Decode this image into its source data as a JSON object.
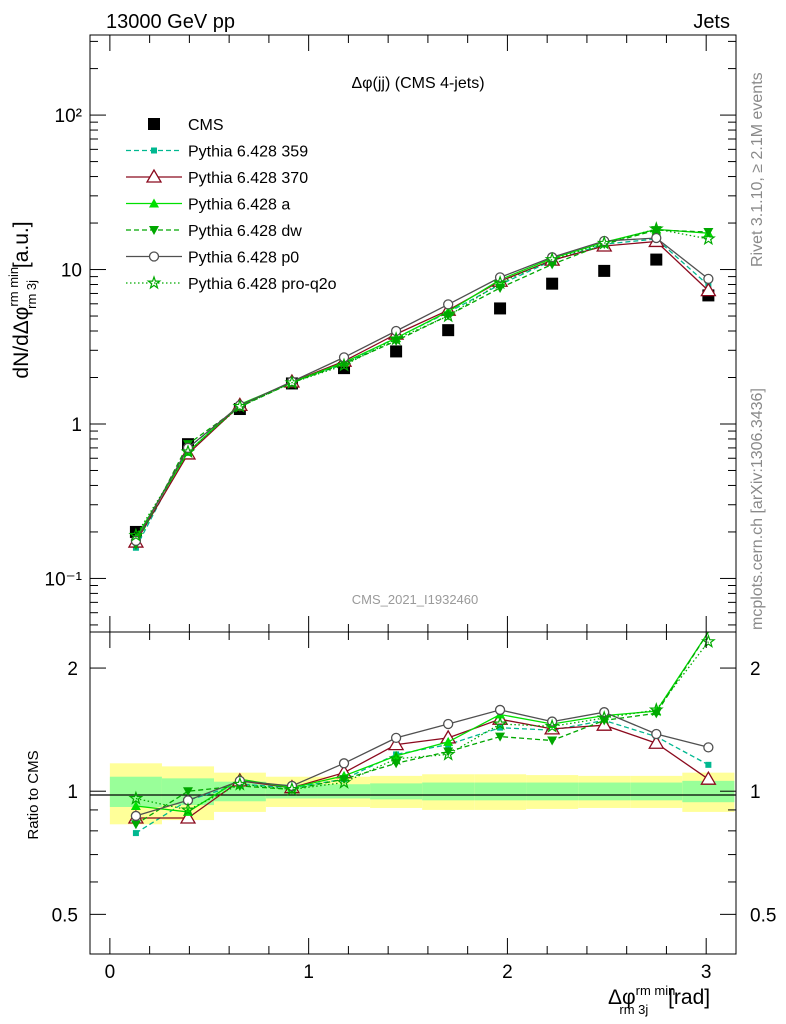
{
  "header": {
    "left": "13000 GeV pp",
    "right": "Jets"
  },
  "side_labels": {
    "rivet": "Rivet 3.1.10, ≥ 2.1M events",
    "mcplots": "mcplots.cern.ch [arXiv:1306.3436]"
  },
  "chart_data": [
    {
      "type": "scatter",
      "title": "Δφ(jj) (CMS 4-jets)",
      "analysis_tag": "CMS_2021_I1932460",
      "ylabel": "dN/dΔφ rm min rm 3j [a.u.]",
      "yscale": "log",
      "xlim": [
        -0.1,
        3.15
      ],
      "ylim": [
        0.045,
        330
      ],
      "ytick_labels": [
        "10⁻¹",
        "1",
        "10",
        "10²"
      ],
      "ytick_values": [
        0.1,
        1,
        10,
        100
      ],
      "legend_position": "top-left",
      "x": [
        0.131,
        0.393,
        0.654,
        0.916,
        1.178,
        1.44,
        1.702,
        1.963,
        2.225,
        2.487,
        2.749,
        3.011
      ],
      "series": [
        {
          "name": "CMS",
          "color": "#000000",
          "marker": "square",
          "line": "none",
          "values": [
            0.2,
            0.74,
            1.25,
            1.83,
            2.3,
            2.95,
            4.05,
            5.6,
            8.1,
            9.8,
            11.6,
            6.8
          ],
          "errors": [
            0.01,
            0.03,
            0.05,
            0.06,
            0.08,
            0.1,
            0.13,
            0.18,
            0.25,
            0.3,
            0.35,
            0.3
          ]
        },
        {
          "name": "Pythia 6.428 359",
          "color": "#00b890",
          "marker": "small-square",
          "line": "dashed",
          "values": [
            0.158,
            0.7,
            1.3,
            1.87,
            2.45,
            3.62,
            5.28,
            8.0,
            11.4,
            14.6,
            15.8,
            7.9
          ]
        },
        {
          "name": "Pythia 6.428 370",
          "color": "#8b0a1e",
          "marker": "open-triangle-up",
          "line": "solid",
          "values": [
            0.172,
            0.64,
            1.32,
            1.87,
            2.55,
            3.82,
            5.45,
            8.4,
            11.5,
            14.2,
            15.2,
            7.3
          ]
        },
        {
          "name": "Pythia 6.428 a",
          "color": "#00e000",
          "marker": "triangle-up",
          "line": "solid",
          "values": [
            0.183,
            0.66,
            1.34,
            1.86,
            2.5,
            3.6,
            5.35,
            8.6,
            11.8,
            15.0,
            18.2,
            17.2
          ]
        },
        {
          "name": "Pythia 6.428 dw",
          "color": "#00a800",
          "marker": "triangle-down",
          "line": "dashed",
          "values": [
            0.165,
            0.74,
            1.29,
            1.85,
            2.45,
            3.45,
            5.05,
            7.6,
            10.8,
            14.6,
            18.0,
            17.5
          ]
        },
        {
          "name": "Pythia 6.428 p0",
          "color": "#505050",
          "marker": "open-circle",
          "line": "solid",
          "values": [
            0.175,
            0.7,
            1.32,
            1.88,
            2.7,
            4.0,
            5.95,
            8.9,
            12.0,
            15.3,
            16.0,
            8.7
          ]
        },
        {
          "name": "Pythia 6.428 pro-q2o",
          "color": "#00aa00",
          "marker": "open-star",
          "line": "dotted",
          "values": [
            0.19,
            0.66,
            1.3,
            1.85,
            2.4,
            3.55,
            5.0,
            8.2,
            11.6,
            14.8,
            18.3,
            15.8
          ]
        }
      ]
    },
    {
      "type": "scatter",
      "ylabel": "Ratio to CMS",
      "xlabel": "Δφ rm min rm 3j [rad]",
      "yscale": "log",
      "xlim": [
        -0.1,
        3.15
      ],
      "ylim": [
        0.4,
        2.45
      ],
      "xtick_labels": [
        "0",
        "1",
        "2",
        "3"
      ],
      "xtick_values": [
        0,
        1,
        2,
        3
      ],
      "ytick_labels": [
        "0.5",
        "1",
        "2"
      ],
      "ytick_values": [
        0.5,
        1,
        2
      ],
      "x": [
        0.131,
        0.393,
        0.654,
        0.916,
        1.178,
        1.44,
        1.702,
        1.963,
        2.225,
        2.487,
        2.749,
        3.011
      ],
      "band_edges": [
        0,
        0.262,
        0.524,
        0.785,
        1.047,
        1.309,
        1.571,
        1.833,
        2.094,
        2.356,
        2.618,
        2.88,
        3.142
      ],
      "band_green": [
        0.085,
        0.075,
        0.055,
        0.04,
        0.04,
        0.045,
        0.05,
        0.05,
        0.05,
        0.05,
        0.05,
        0.06
      ],
      "band_yellow": [
        0.17,
        0.15,
        0.11,
        0.085,
        0.085,
        0.09,
        0.1,
        0.1,
        0.095,
        0.09,
        0.09,
        0.11
      ],
      "series": [
        {
          "name": "Pythia 6.428 359",
          "color": "#00b890",
          "marker": "small-square",
          "line": "dashed",
          "values": [
            0.79,
            0.95,
            1.04,
            1.02,
            1.07,
            1.23,
            1.3,
            1.43,
            1.41,
            1.49,
            1.36,
            1.16
          ]
        },
        {
          "name": "Pythia 6.428 370",
          "color": "#8b0a1e",
          "marker": "open-triangle-up",
          "line": "solid",
          "values": [
            0.86,
            0.86,
            1.06,
            1.02,
            1.11,
            1.3,
            1.35,
            1.5,
            1.42,
            1.45,
            1.31,
            1.07
          ]
        },
        {
          "name": "Pythia 6.428 a",
          "color": "#00e000",
          "marker": "triangle-up",
          "line": "solid",
          "values": [
            0.92,
            0.89,
            1.07,
            1.02,
            1.09,
            1.22,
            1.32,
            1.54,
            1.46,
            1.53,
            1.57,
            2.53
          ]
        },
        {
          "name": "Pythia 6.428 dw",
          "color": "#00a800",
          "marker": "triangle-down",
          "line": "dashed",
          "values": [
            0.83,
            1.0,
            1.03,
            1.01,
            1.07,
            1.17,
            1.25,
            1.36,
            1.33,
            1.49,
            1.55,
            2.57
          ]
        },
        {
          "name": "Pythia 6.428 p0",
          "color": "#505050",
          "marker": "open-circle",
          "line": "solid",
          "values": [
            0.87,
            0.95,
            1.06,
            1.03,
            1.17,
            1.35,
            1.46,
            1.58,
            1.48,
            1.56,
            1.38,
            1.28
          ]
        },
        {
          "name": "Pythia 6.428 pro-q2o",
          "color": "#00aa00",
          "marker": "open-star",
          "line": "dotted",
          "values": [
            0.96,
            0.9,
            1.04,
            1.01,
            1.05,
            1.2,
            1.23,
            1.46,
            1.44,
            1.51,
            1.58,
            2.32
          ]
        }
      ]
    }
  ]
}
